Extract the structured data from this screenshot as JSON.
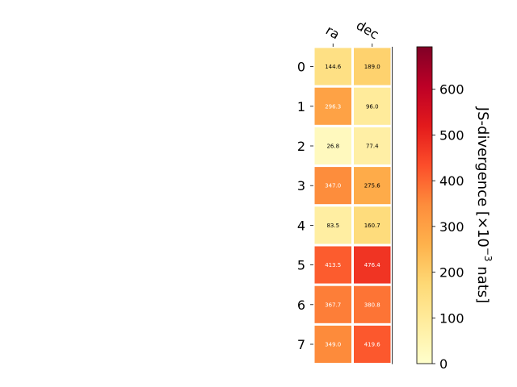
{
  "chart_data": {
    "type": "heatmap",
    "x_categories": [
      "ra",
      "dec"
    ],
    "y_categories": [
      "0",
      "1",
      "2",
      "3",
      "4",
      "5",
      "6",
      "7"
    ],
    "values": [
      [
        144.6,
        189.0
      ],
      [
        296.3,
        96.0
      ],
      [
        26.8,
        77.4
      ],
      [
        347.0,
        275.6
      ],
      [
        83.5,
        160.7
      ],
      [
        413.5,
        476.4
      ],
      [
        367.7,
        380.8
      ],
      [
        349.0,
        419.6
      ]
    ],
    "value_labels": [
      [
        "144.6",
        "189.0"
      ],
      [
        "296.3",
        "96.0"
      ],
      [
        "26.8",
        "77.4"
      ],
      [
        "347.0",
        "275.6"
      ],
      [
        "83.5",
        "160.7"
      ],
      [
        "413.5",
        "476.4"
      ],
      [
        "367.7",
        "380.8"
      ],
      [
        "349.0",
        "419.6"
      ]
    ],
    "colormap": "YlOrRd",
    "vmin": 0,
    "vmax": 693,
    "colorbar": {
      "label_prefix": "JS-divergence [×10",
      "label_exponent": "−3",
      "label_suffix": " nats]",
      "ticks": [
        "0",
        "100",
        "200",
        "300",
        "400",
        "500",
        "600"
      ],
      "tick_values": [
        0,
        100,
        200,
        300,
        400,
        500,
        600
      ]
    },
    "x_tick_position": "top",
    "grid": false
  }
}
